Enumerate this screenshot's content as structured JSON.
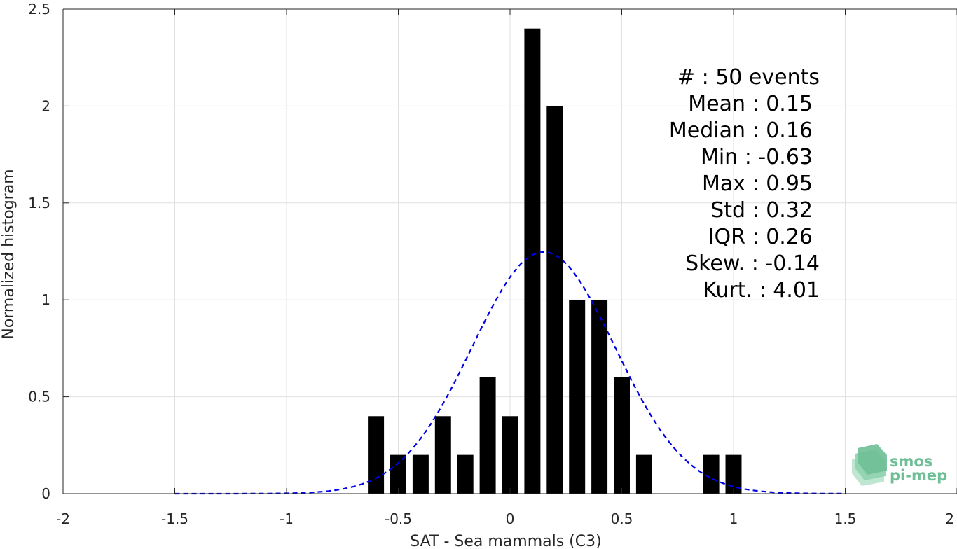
{
  "chart_data": {
    "type": "bar",
    "title": "",
    "xlabel": "SAT - Sea mammals (C3)",
    "ylabel": "Normalized histogram",
    "xlim": [
      -2,
      2
    ],
    "ylim": [
      0,
      2.5
    ],
    "x_ticks": [
      -2,
      -1.5,
      -1,
      -0.5,
      0,
      0.5,
      1,
      1.5,
      2
    ],
    "x_tick_labels": [
      "-2",
      "-1.5",
      "-1",
      "-0.5",
      "0",
      "0.5",
      "1",
      "1.5",
      "2"
    ],
    "y_ticks": [
      0,
      0.5,
      1,
      1.5,
      2,
      2.5
    ],
    "y_tick_labels": [
      "0",
      "0.5",
      "1",
      "1.5",
      "2",
      "2.5"
    ],
    "grid": true,
    "bin_width": 0.1,
    "bins": {
      "x": [
        -0.6,
        -0.5,
        -0.4,
        -0.3,
        -0.2,
        -0.1,
        0.0,
        0.1,
        0.2,
        0.3,
        0.4,
        0.5,
        0.6,
        0.9,
        1.0
      ],
      "values": [
        0.4,
        0.2,
        0.2,
        0.4,
        0.2,
        0.6,
        0.4,
        2.4,
        2.0,
        1.0,
        1.0,
        0.6,
        0.2,
        0.2,
        0.2
      ],
      "color": "#000000"
    },
    "fit_curve": {
      "style": "dashed",
      "color": "#0000e6",
      "mean": 0.15,
      "std": 0.32,
      "x_range": [
        -1.5,
        1.5
      ]
    },
    "stats": [
      "#  : 50 events",
      "Mean : 0.15",
      "Median : 0.16",
      "Min : -0.63",
      "Max : 0.95",
      "Std : 0.32",
      "IQR : 0.26",
      "Skew. : -0.14",
      "Kurt. : 4.01"
    ]
  },
  "logo": {
    "line1": "smos",
    "line2": "pi-mep",
    "color": "#6fbf96"
  }
}
